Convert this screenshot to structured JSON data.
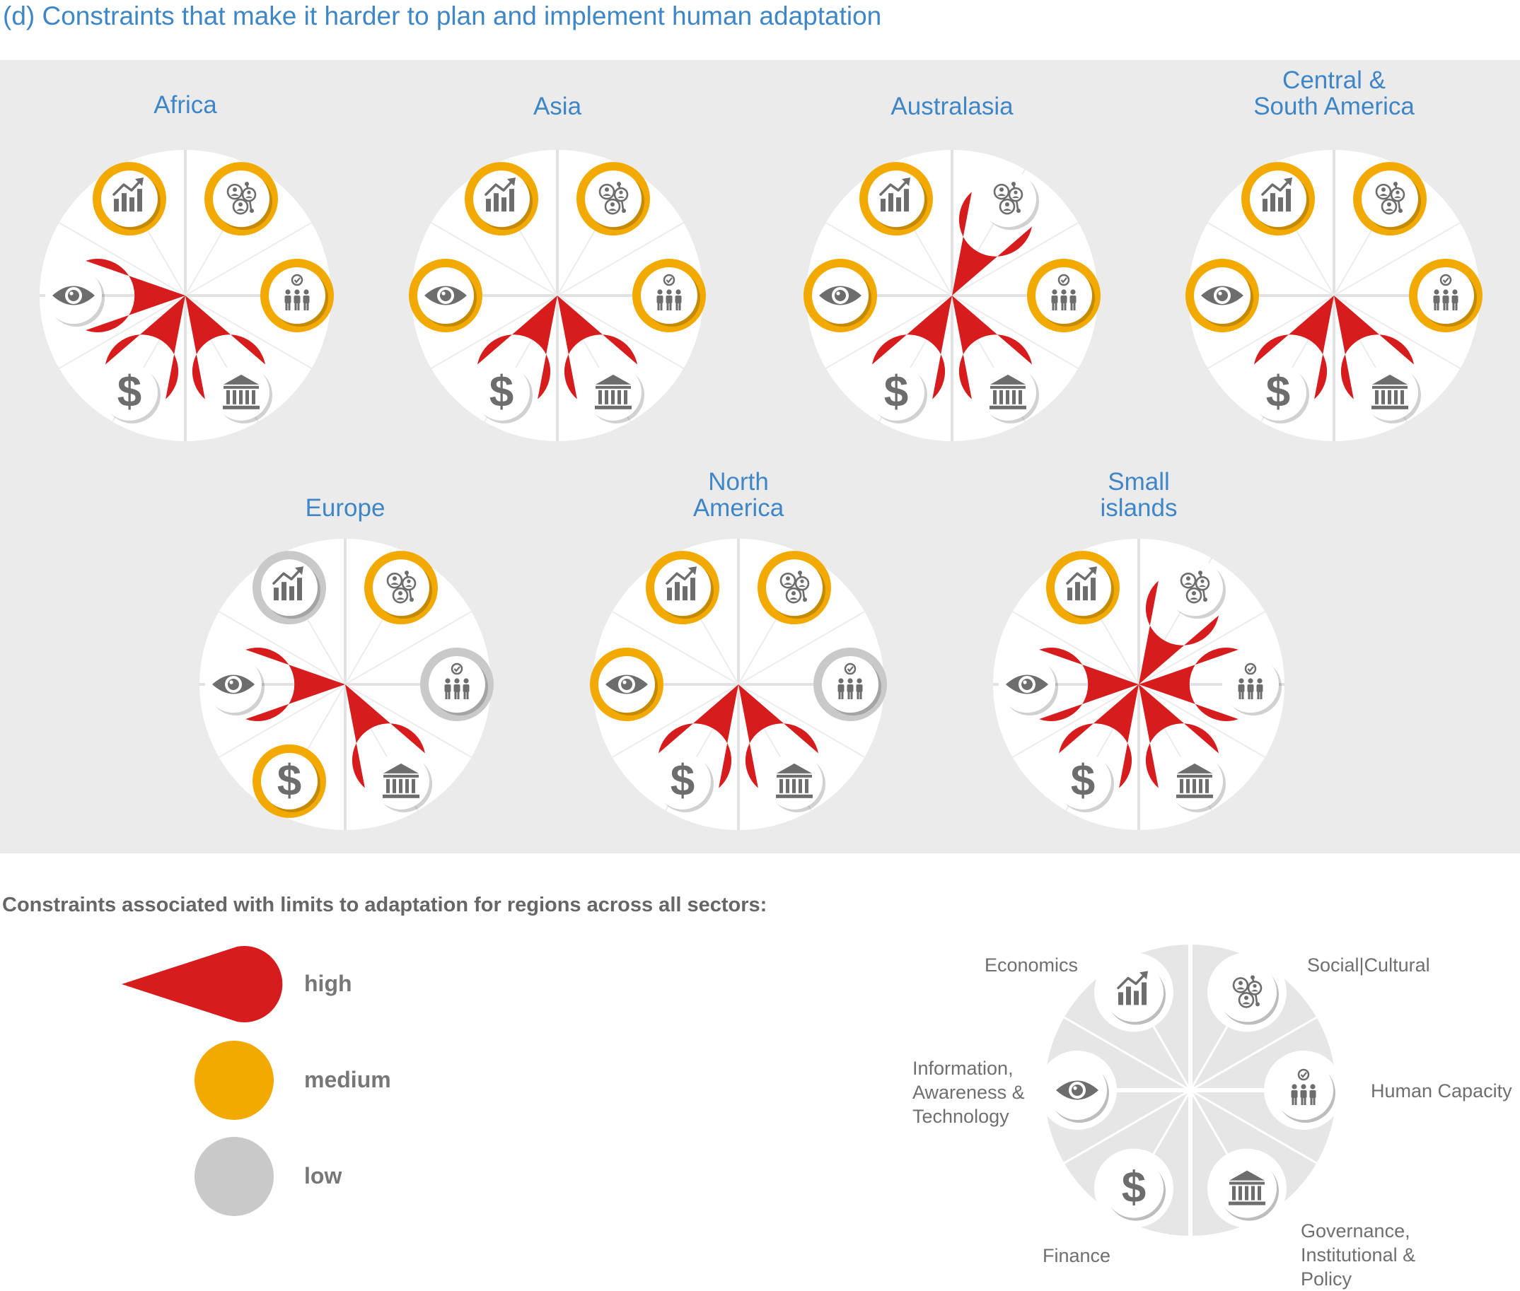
{
  "title": "(d) Constraints that make it harder to plan and implement human adaptation",
  "colors": {
    "high": "#d61c1c",
    "medium": "#f2a900",
    "low": "#c9c9c9",
    "region_title": "#3f86c7",
    "icon": "#6d6d6d"
  },
  "constraints": [
    {
      "key": "economics",
      "label": "Economics",
      "icon": "chart-up-icon"
    },
    {
      "key": "social",
      "label": "Social|Cultural",
      "icon": "social-network-icon"
    },
    {
      "key": "human",
      "label": "Human Capacity",
      "icon": "people-check-icon"
    },
    {
      "key": "governance",
      "label": "Governance, Institutional & Policy",
      "icon": "institution-icon"
    },
    {
      "key": "finance",
      "label": "Finance",
      "icon": "dollar-icon"
    },
    {
      "key": "information",
      "label": "Information, Awareness & Technology",
      "icon": "eye-icon"
    }
  ],
  "regions": [
    {
      "name": "Africa",
      "levels": {
        "economics": "medium",
        "social": "medium",
        "human": "medium",
        "governance": "high",
        "finance": "high",
        "information": "high"
      }
    },
    {
      "name": "Asia",
      "levels": {
        "economics": "medium",
        "social": "medium",
        "human": "medium",
        "governance": "high",
        "finance": "high",
        "information": "medium"
      }
    },
    {
      "name": "Australasia",
      "levels": {
        "economics": "medium",
        "social": "high",
        "human": "medium",
        "governance": "high",
        "finance": "high",
        "information": "medium"
      }
    },
    {
      "name": "Central & South America",
      "levels": {
        "economics": "medium",
        "social": "medium",
        "human": "medium",
        "governance": "high",
        "finance": "high",
        "information": "medium"
      }
    },
    {
      "name": "Europe",
      "levels": {
        "economics": "low",
        "social": "medium",
        "human": "low",
        "governance": "high",
        "finance": "medium",
        "information": "high"
      }
    },
    {
      "name": "North America",
      "levels": {
        "economics": "medium",
        "social": "medium",
        "human": "low",
        "governance": "high",
        "finance": "high",
        "information": "medium"
      }
    },
    {
      "name": "Small islands",
      "levels": {
        "economics": "medium",
        "social": "high",
        "human": "high",
        "governance": "high",
        "finance": "high",
        "information": "high"
      }
    }
  ],
  "legend": {
    "heading": "Constraints associated with limits to adaptation for regions across all sectors:",
    "items": [
      {
        "level": "high",
        "label": "high"
      },
      {
        "level": "medium",
        "label": "medium"
      },
      {
        "level": "low",
        "label": "low"
      }
    ]
  }
}
